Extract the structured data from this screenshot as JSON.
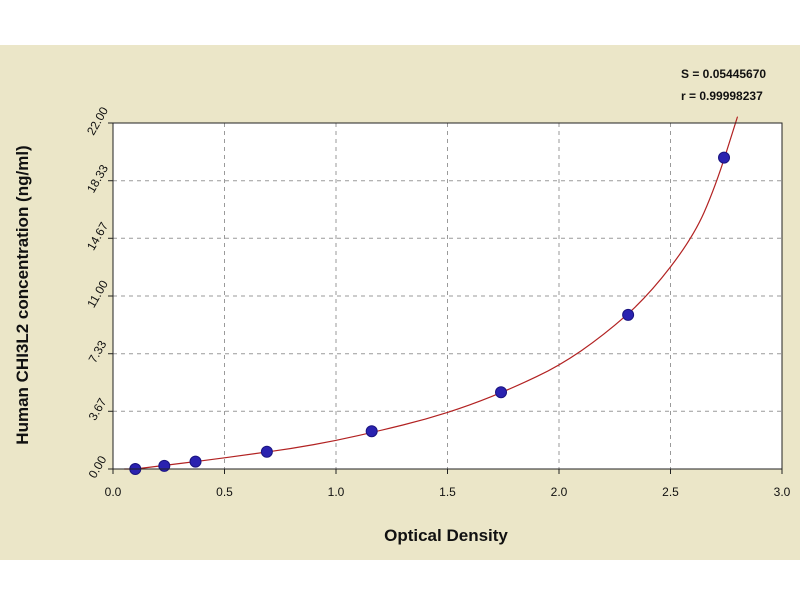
{
  "chart_data": {
    "type": "scatter",
    "title": "",
    "xlabel": "Optical Density",
    "ylabel": "Human CHI3L2 concentration (ng/ml)",
    "xlim": [
      0.0,
      3.0
    ],
    "ylim": [
      0.0,
      22.0
    ],
    "x_ticks": [
      "0.0",
      "0.5",
      "1.0",
      "1.5",
      "2.0",
      "2.5",
      "3.0"
    ],
    "y_ticks": [
      "0.00",
      "3.67",
      "7.33",
      "11.00",
      "14.67",
      "18.33",
      "22.00"
    ],
    "grid": true,
    "series": [
      {
        "points": [
          {
            "x": 0.1,
            "y": 0.0
          },
          {
            "x": 0.23,
            "y": 0.2
          },
          {
            "x": 0.37,
            "y": 0.47
          },
          {
            "x": 0.69,
            "y": 1.1
          },
          {
            "x": 1.16,
            "y": 2.4
          },
          {
            "x": 1.74,
            "y": 4.88
          },
          {
            "x": 2.31,
            "y": 9.8
          },
          {
            "x": 2.74,
            "y": 19.8
          }
        ]
      }
    ],
    "fit_curve": [
      {
        "x": 0.05,
        "y": -0.1
      },
      {
        "x": 0.1,
        "y": 0.0
      },
      {
        "x": 0.2,
        "y": 0.18
      },
      {
        "x": 0.4,
        "y": 0.52
      },
      {
        "x": 0.6,
        "y": 0.9
      },
      {
        "x": 0.8,
        "y": 1.3
      },
      {
        "x": 1.0,
        "y": 1.8
      },
      {
        "x": 1.2,
        "y": 2.45
      },
      {
        "x": 1.4,
        "y": 3.15
      },
      {
        "x": 1.6,
        "y": 4.05
      },
      {
        "x": 1.8,
        "y": 5.2
      },
      {
        "x": 2.0,
        "y": 6.55
      },
      {
        "x": 2.2,
        "y": 8.5
      },
      {
        "x": 2.4,
        "y": 11.0
      },
      {
        "x": 2.6,
        "y": 14.7
      },
      {
        "x": 2.7,
        "y": 17.9
      },
      {
        "x": 2.8,
        "y": 22.5
      }
    ],
    "stats": {
      "s": "S = 0.05445670",
      "r": "r = 0.99998237"
    },
    "colors": {
      "background": "#ebe6c8",
      "points": "#2a22b0",
      "curve": "#b22222",
      "grid": "#9a9a9a"
    }
  }
}
